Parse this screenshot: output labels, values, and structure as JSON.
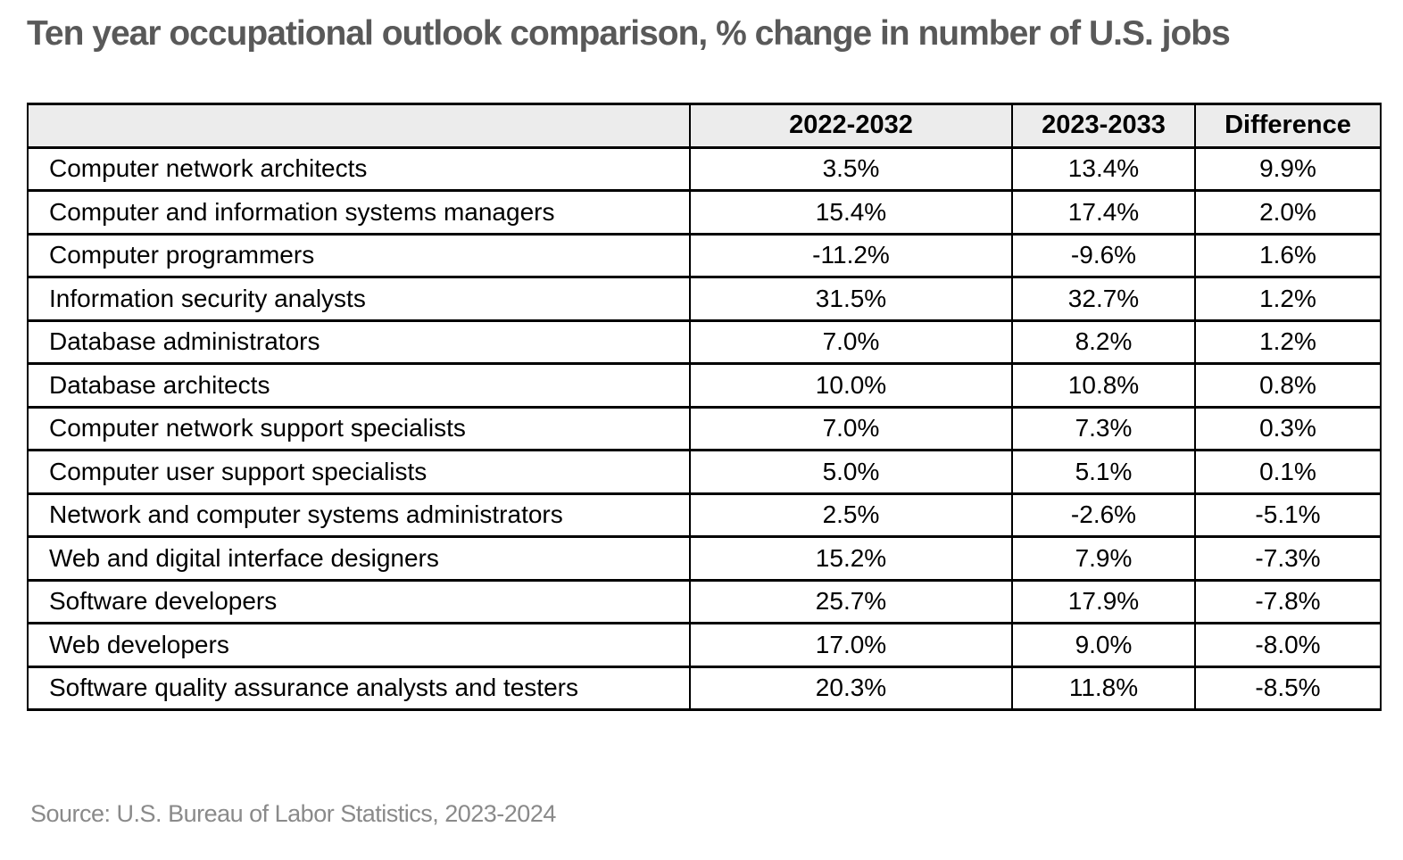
{
  "title": "Ten year occupational outlook comparison, % change in number of U.S. jobs",
  "source": "Source: U.S. Bureau of Labor Statistics, 2023-2024",
  "colors": {
    "title_text": "#595959",
    "source_text": "#8a8a8a",
    "header_background": "#ececec",
    "border": "#000000",
    "cell_text": "#000000",
    "page_background": "#ffffff"
  },
  "table": {
    "headers": [
      "",
      "2022-2032",
      "2023-2033",
      "Difference"
    ],
    "rows": [
      [
        "Computer network architects",
        "3.5%",
        "13.4%",
        "9.9%"
      ],
      [
        "Computer and information systems managers",
        "15.4%",
        "17.4%",
        "2.0%"
      ],
      [
        "Computer programmers",
        "-11.2%",
        "-9.6%",
        "1.6%"
      ],
      [
        "Information security analysts",
        "31.5%",
        "32.7%",
        "1.2%"
      ],
      [
        "Database administrators",
        "7.0%",
        "8.2%",
        "1.2%"
      ],
      [
        "Database architects",
        "10.0%",
        "10.8%",
        "0.8%"
      ],
      [
        "Computer network support specialists",
        "7.0%",
        "7.3%",
        "0.3%"
      ],
      [
        "Computer user support specialists",
        "5.0%",
        "5.1%",
        "0.1%"
      ],
      [
        "Network and computer systems administrators",
        "2.5%",
        "-2.6%",
        "-5.1%"
      ],
      [
        "Web and digital interface designers",
        "15.2%",
        "7.9%",
        "-7.3%"
      ],
      [
        "Software developers",
        "25.7%",
        "17.9%",
        "-7.8%"
      ],
      [
        "Web developers",
        "17.0%",
        "9.0%",
        "-8.0%"
      ],
      [
        "Software quality assurance analysts and testers",
        "20.3%",
        "11.8%",
        "-8.5%"
      ]
    ]
  },
  "chart_data": {
    "type": "table",
    "title": "Ten year occupational outlook comparison, % change in number of U.S. jobs",
    "categories": [
      "Computer network architects",
      "Computer and information systems managers",
      "Computer programmers",
      "Information security analysts",
      "Database administrators",
      "Database architects",
      "Computer network support specialists",
      "Computer user support specialists",
      "Network and computer systems administrators",
      "Web and digital interface designers",
      "Software developers",
      "Web developers",
      "Software quality assurance analysts and testers"
    ],
    "series": [
      {
        "name": "2022-2032",
        "values": [
          3.5,
          15.4,
          -11.2,
          31.5,
          7.0,
          10.0,
          7.0,
          5.0,
          2.5,
          15.2,
          25.7,
          17.0,
          20.3
        ]
      },
      {
        "name": "2023-2033",
        "values": [
          13.4,
          17.4,
          -9.6,
          32.7,
          8.2,
          10.8,
          7.3,
          5.1,
          -2.6,
          7.9,
          17.9,
          9.0,
          11.8
        ]
      },
      {
        "name": "Difference",
        "values": [
          9.9,
          2.0,
          1.6,
          1.2,
          1.2,
          0.8,
          0.3,
          0.1,
          -5.1,
          -7.3,
          -7.8,
          -8.0,
          -8.5
        ]
      }
    ],
    "value_unit": "%",
    "source": "Source: U.S. Bureau of Labor Statistics, 2023-2024",
    "layout": {
      "grid": "full-borders",
      "header_shaded": true,
      "legend_position": "none"
    }
  }
}
